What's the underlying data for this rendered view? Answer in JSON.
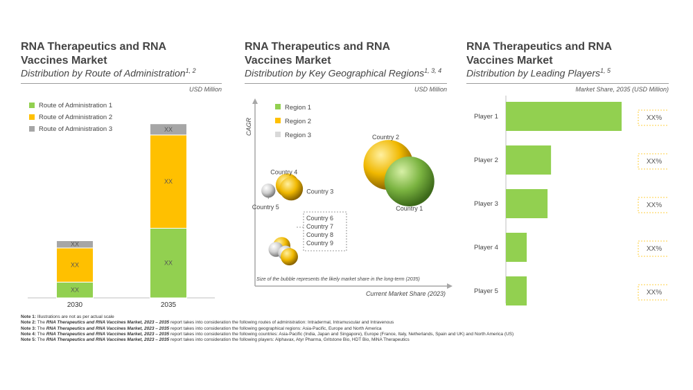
{
  "panels": [
    {
      "title_line1": "RNA Therapeutics and RNA",
      "title_line2": "Vaccines Market",
      "subtitle": "Distribution by Route of Administration",
      "sup": "1, 2",
      "unit": "USD Million"
    },
    {
      "title_line1": "RNA Therapeutics and RNA",
      "title_line2": "Vaccines Market",
      "subtitle": "Distribution by Key Geographical Regions",
      "sup": "1, 3, 4",
      "unit": "USD Million"
    },
    {
      "title_line1": "RNA Therapeutics and RNA",
      "title_line2": "Vaccines Market",
      "subtitle": "Distribution by Leading Players",
      "sup": "1, 5",
      "unit": "Market Share, 2035 (USD Million)"
    }
  ],
  "colors": {
    "green": "#92d050",
    "yellow": "#ffc000",
    "grey": "#a6a6a6",
    "lightgrey": "#d9d9d9"
  },
  "chart_data": [
    {
      "type": "bar",
      "stacked": true,
      "categories": [
        "2030",
        "2035"
      ],
      "series": [
        {
          "name": "Route of Administration 1",
          "color": "#92d050",
          "values": [
            0.24,
            1.06
          ],
          "labels": [
            "XX",
            "XX"
          ]
        },
        {
          "name": "Route of Administration 2",
          "color": "#ffc000",
          "values": [
            0.52,
            1.42
          ],
          "labels": [
            "XX",
            "XX"
          ]
        },
        {
          "name": "Route of Administration 3",
          "color": "#a6a6a6",
          "values": [
            0.11,
            0.17
          ],
          "labels": [
            "XX",
            "XX"
          ]
        }
      ],
      "legend": "top-left",
      "ylim": [
        0,
        2.9
      ]
    },
    {
      "type": "scatter",
      "xlabel": "Current Market Share (2023)",
      "ylabel": "CAGR",
      "legend_entries": [
        {
          "name": "Region 1",
          "color": "#92d050"
        },
        {
          "name": "Region 2",
          "color": "#ffc000"
        },
        {
          "name": "Region 3",
          "color": "#d9d9d9"
        }
      ],
      "points": [
        {
          "label": "Country 1",
          "region": "Region 1",
          "x": 0.81,
          "y": 0.57,
          "size": 1.0
        },
        {
          "label": "Country 2",
          "region": "Region 2",
          "x": 0.7,
          "y": 0.66,
          "size": 1.0
        },
        {
          "label": "Country 3",
          "region": "Region 2",
          "x": 0.19,
          "y": 0.53,
          "size": 0.22
        },
        {
          "label": "Country 4",
          "region": "Region 2",
          "x": 0.17,
          "y": 0.55,
          "size": 0.22
        },
        {
          "label": "Country 5",
          "region": "Region 3",
          "x": 0.07,
          "y": 0.52,
          "size": 0.08
        },
        {
          "label": "Country 6",
          "region": "Region 2",
          "x": 0.14,
          "y": 0.22,
          "size": 0.12
        },
        {
          "label": "Country 7",
          "region": "Region 3",
          "x": 0.11,
          "y": 0.2,
          "size": 0.09
        },
        {
          "label": "Country 8",
          "region": "Region 3",
          "x": 0.16,
          "y": 0.18,
          "size": 0.09
        },
        {
          "label": "Country 9",
          "region": "Region 2",
          "x": 0.18,
          "y": 0.16,
          "size": 0.12
        }
      ],
      "annotation": "Size of the bubble represents the likely market share in the long-term (2035)"
    },
    {
      "type": "bar",
      "orientation": "horizontal",
      "categories": [
        "Player 1",
        "Player 2",
        "Player 3",
        "Player 4",
        "Player 5"
      ],
      "values": [
        1.0,
        0.39,
        0.36,
        0.18,
        0.18
      ],
      "value_labels": [
        "XX%",
        "XX%",
        "XX%",
        "XX%",
        "XX%"
      ],
      "color": "#92d050",
      "xlim": [
        0,
        1.0
      ]
    }
  ],
  "notes": [
    {
      "label": "Note 1:",
      "pre": "Illustrations are not as per actual scale",
      "report": "",
      "post": ""
    },
    {
      "label": "Note 2:",
      "pre": "The",
      "report": "RNA Therapeutics and RNA Vaccines Market, 2023 – 2035",
      "post": "report takes into consideration the following routes of administration: Intradermal, Intramuscular and Intravenous"
    },
    {
      "label": "Note 3:",
      "pre": "The",
      "report": "RNA Therapeutics and RNA Vaccines Market, 2023 – 2035",
      "post": "report takes into consideration the following geographical regions: Asia-Pacific, Europe and North America"
    },
    {
      "label": "Note 4:",
      "pre": "The",
      "report": "RNA Therapeutics and RNA Vaccines Market, 2023 – 2035",
      "post": "report takes into consideration the following countries: Asia-Pacific (India, Japan and Singapore), Europe (France, Italy, Netherlands, Spain and UK) and North America (US)"
    },
    {
      "label": "Note 5:",
      "pre": "The",
      "report": "RNA Therapeutics and RNA Vaccines Market, 2023 – 2035",
      "post": "report takes into consideration the following players: Alphavax, Atyr Pharma, Gritstone Bio, HDT Bio, MiNA Therapeutics"
    }
  ]
}
